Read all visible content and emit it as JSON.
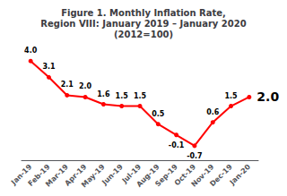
{
  "chart_data": {
    "type": "line",
    "title": "Figure 1. Monthly Inflation Rate,\nRegion VIII: January 2019 – January 2020\n(2012=100)",
    "categories": [
      "Jan-19",
      "Feb-19",
      "Mar-19",
      "Apr-19",
      "May-19",
      "Jun-19",
      "Jul-19",
      "Aug-19",
      "Sep-19",
      "Oct-19",
      "Nov-19",
      "Dec-19",
      "Jan-20"
    ],
    "values": [
      4.0,
      3.1,
      2.1,
      2.0,
      1.6,
      1.5,
      1.5,
      0.5,
      -0.1,
      -0.7,
      0.6,
      1.5,
      2.0
    ],
    "value_labels": [
      "4.0",
      "3.1",
      "2.1",
      "2.0",
      "1.6",
      "1.5",
      "1.5",
      "0.5",
      "-0.1",
      "-0.7",
      "0.6",
      "1.5",
      "2.0"
    ],
    "data_labels": true,
    "color": "#FF0000",
    "ylim": [
      -1.5,
      5.0
    ],
    "tick_labels": "x",
    "grid": false
  }
}
